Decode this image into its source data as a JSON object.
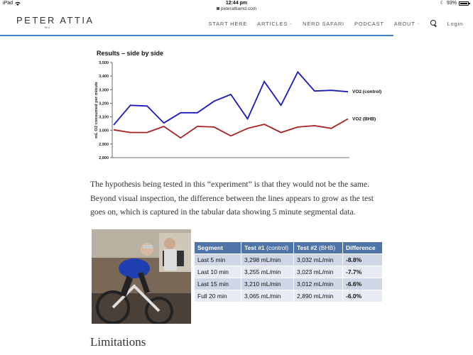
{
  "status_bar": {
    "device": "iPad",
    "time": "12:44 pm",
    "battery": "93%"
  },
  "url_bar": {
    "domain": "peterattiamd.com"
  },
  "site": {
    "logo": "PETER ATTIA",
    "logo_sub": "MD",
    "nav": [
      {
        "label": "START HERE",
        "has_dropdown": false
      },
      {
        "label": "ARTICLES",
        "has_dropdown": true
      },
      {
        "label": "NERD SAFARI",
        "has_dropdown": false
      },
      {
        "label": "PODCAST",
        "has_dropdown": false
      },
      {
        "label": "ABOUT",
        "has_dropdown": true
      }
    ],
    "login": "Login",
    "accent": "#3e87c9"
  },
  "chart_data": {
    "type": "line",
    "title": "Results – side by side",
    "ylabel": "mL O2 consumed per minute",
    "ylim": [
      2800,
      3500
    ],
    "yticks": [
      "2,800",
      "2,900",
      "3,000",
      "3,100",
      "3,200",
      "3,300",
      "3,400",
      "3,500"
    ],
    "x": [
      1,
      2,
      3,
      4,
      5,
      6,
      7,
      8,
      9,
      10,
      11,
      12,
      13,
      14,
      15
    ],
    "series": [
      {
        "name": "VO2 (control)",
        "color": "#1a1ab8",
        "values": [
          3040,
          3185,
          3180,
          3055,
          3130,
          3130,
          3215,
          3265,
          3085,
          3360,
          3185,
          3430,
          3290,
          3295,
          3285
        ]
      },
      {
        "name": "VO2 (BHB)",
        "color": "#a82020",
        "values": [
          3005,
          2985,
          2985,
          3030,
          2945,
          3030,
          3025,
          2960,
          3015,
          3045,
          2985,
          3025,
          3035,
          3015,
          3085
        ]
      }
    ]
  },
  "article": {
    "paragraph": "The hypothesis being tested in this “experiment” is that they would not be the same. Beyond visual inspection, the difference between the lines appears to grow as the test goes on, which is captured in the tabular data showing 5 minute segmental data.",
    "section_heading": "Limitations"
  },
  "table": {
    "headers": {
      "segment": "Segment",
      "test1": "Test #1",
      "test1_note": "(control)",
      "test2": "Test #2",
      "test2_note": "(BHB)",
      "difference": "Difference"
    },
    "rows": [
      {
        "segment": "Last 5 min",
        "test1": "3,298 mL/min",
        "test2": "3,032 mL/min",
        "difference": "-8.8%"
      },
      {
        "segment": "Last 10 min",
        "test1": "3,255 mL/min",
        "test2": "3,023 mL/min",
        "difference": "-7.7%"
      },
      {
        "segment": "Last 15 min",
        "test1": "3,210 mL/min",
        "test2": "3,012 mL/min",
        "difference": "-6.6%"
      },
      {
        "segment": "Full 20 min",
        "test1": "3,065 mL/min",
        "test2": "2,890 mL/min",
        "difference": "-6.0%"
      }
    ]
  }
}
